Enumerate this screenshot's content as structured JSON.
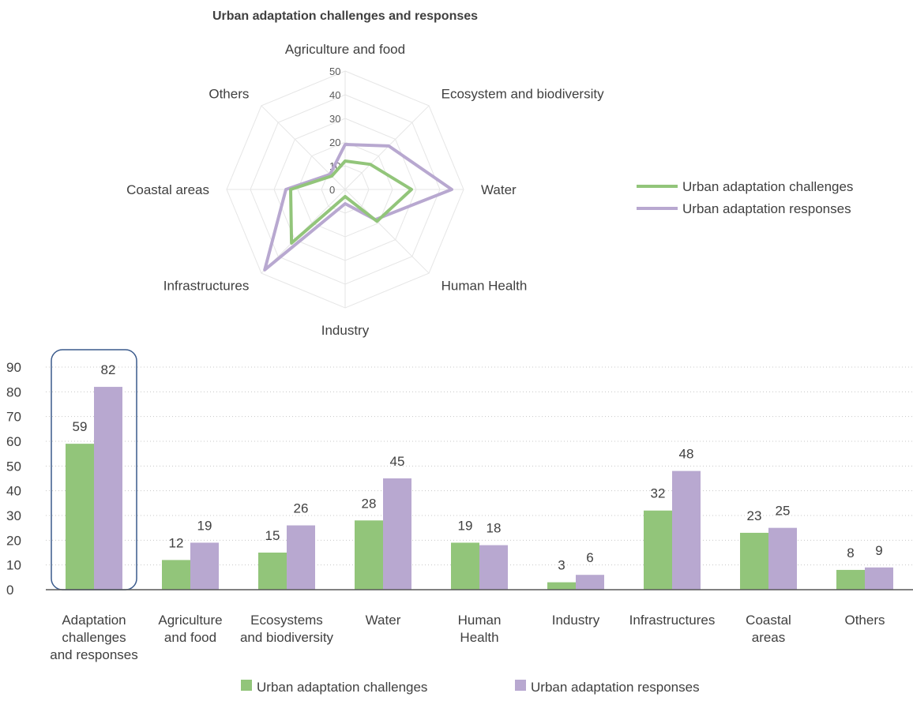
{
  "colors": {
    "challenges": "#92c57a",
    "responses": "#b8a8d0",
    "web_grid": "#e6e6e6",
    "bar_grid": "#c8c8c8",
    "axis": "#595959",
    "text": "#404040",
    "highlight_box": "#3a5a8c"
  },
  "chart_data": [
    {
      "type": "radar",
      "title": "Urban adaptation challenges and responses",
      "categories": [
        "Agriculture and food",
        "Ecosystem and biodiversity",
        "Water",
        "Human Health",
        "Industry",
        "Infrastructures",
        "Coastal areas",
        "Others"
      ],
      "radial_ticks": [
        "0",
        "10",
        "20",
        "30",
        "40",
        "50"
      ],
      "rlim": [
        0,
        50
      ],
      "legend_position": "right",
      "series": [
        {
          "name": "Urban adaptation challenges",
          "values": [
            12,
            15,
            28,
            19,
            3,
            32,
            23,
            8
          ]
        },
        {
          "name": "Urban adaptation responses",
          "values": [
            19,
            26,
            45,
            18,
            6,
            48,
            25,
            9
          ]
        }
      ]
    },
    {
      "type": "bar",
      "categories": [
        "Adaptation challenges and responses",
        "Agriculture and food",
        "Ecosystems and biodiversity",
        "Water",
        "Human Health",
        "Industry",
        "Infrastructures",
        "Coastal areas",
        "Others"
      ],
      "category_lines": [
        [
          "Adaptation",
          "challenges",
          "and responses"
        ],
        [
          "Agriculture",
          "and food"
        ],
        [
          "Ecosystems",
          "and biodiversity"
        ],
        [
          "Water"
        ],
        [
          "Human",
          "Health"
        ],
        [
          "Industry"
        ],
        [
          "Infrastructures"
        ],
        [
          "Coastal",
          "areas"
        ],
        [
          "Others"
        ]
      ],
      "y_ticks": [
        "0",
        "10",
        "20",
        "30",
        "40",
        "50",
        "60",
        "70",
        "80",
        "90"
      ],
      "ylim": [
        0,
        90
      ],
      "grid": true,
      "legend_position": "bottom",
      "highlighted_category": "Adaptation challenges and responses",
      "series": [
        {
          "name": "Urban adaptation challenges",
          "values": [
            59,
            12,
            15,
            28,
            19,
            3,
            32,
            23,
            8
          ]
        },
        {
          "name": "Urban adaptation responses",
          "values": [
            82,
            19,
            26,
            45,
            18,
            6,
            48,
            25,
            9
          ]
        }
      ]
    }
  ]
}
